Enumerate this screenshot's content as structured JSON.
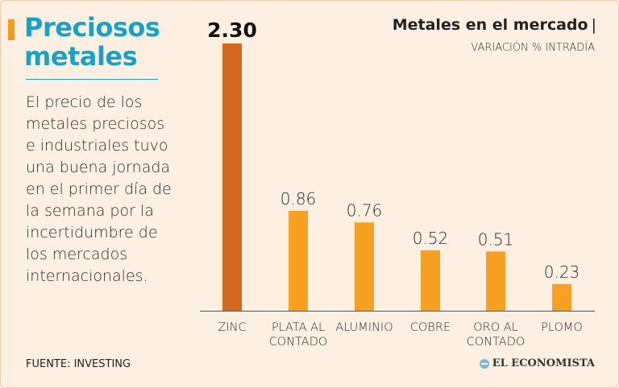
{
  "headline": {
    "line1": "Preciosos",
    "line2": "metales"
  },
  "body_text": "El precio de los metales preciosos e industriales tuvo una buena jornada en el primer día de la semana por la incertidumbre de los mercados internacionales.",
  "source": "FUENTE: INVESTING",
  "logo_text": "EL ECONOMISTA",
  "colors": {
    "headline": "#1aa2c6",
    "accent": "#f49a1c",
    "highlight_bar": "#d2691e",
    "bar": "#f7a021",
    "background": "#fdf0e2"
  },
  "chart_data": {
    "type": "bar",
    "title": "Metales en el mercado",
    "title_separator": "|",
    "subtitle": "VARIACIÓN % INTRADÍA",
    "categories": [
      [
        "ZINC"
      ],
      [
        "PLATA AL",
        "CONTADO"
      ],
      [
        "ALUMINIO"
      ],
      [
        "COBRE"
      ],
      [
        "ORO AL",
        "CONTADO"
      ],
      [
        "PLOMO"
      ]
    ],
    "values": [
      2.3,
      0.86,
      0.76,
      0.52,
      0.51,
      0.23
    ],
    "value_labels": [
      "2.30",
      "0.86",
      "0.76",
      "0.52",
      "0.51",
      "0.23"
    ],
    "highlight_index": 0,
    "ylim": [
      0,
      2.3
    ],
    "xlabel": "",
    "ylabel": "",
    "grid": false
  }
}
